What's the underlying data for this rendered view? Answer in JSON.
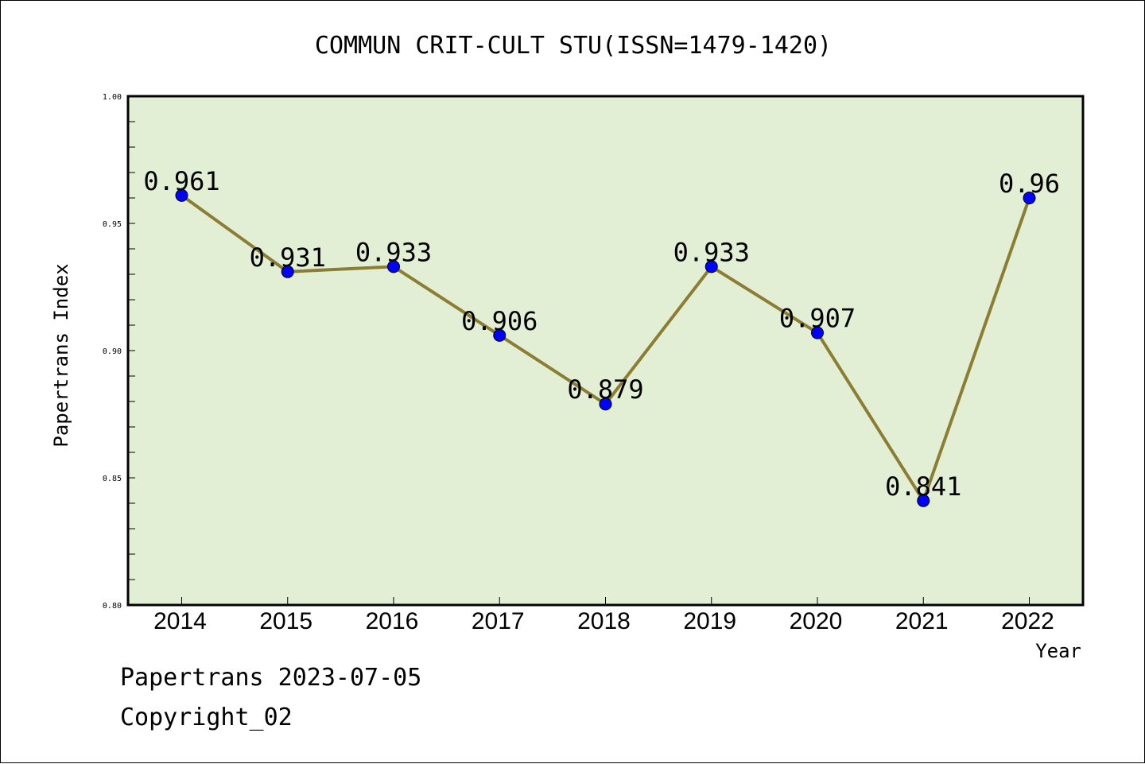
{
  "chart_data": {
    "type": "line",
    "title": "COMMUN CRIT-CULT STU(ISSN=1479-1420)",
    "xlabel": "Year",
    "ylabel": "Papertrans Index",
    "categories": [
      "2014",
      "2015",
      "2016",
      "2017",
      "2018",
      "2019",
      "2020",
      "2021",
      "2022"
    ],
    "values": [
      0.961,
      0.931,
      0.933,
      0.906,
      0.879,
      0.933,
      0.907,
      0.841,
      0.96
    ],
    "data_labels": [
      "0.961",
      "0.931",
      "0.933",
      "0.906",
      "0.879",
      "0.933",
      "0.907",
      "0.841",
      "0.96"
    ],
    "ylim": [
      0.8,
      1.0
    ],
    "yticks": [
      0.8,
      0.85,
      0.9,
      0.95,
      1.0
    ],
    "ytick_labels": [
      "0.80",
      "0.85",
      "0.90",
      "0.95",
      "1.00"
    ],
    "grid": false,
    "legend": "none",
    "colors": {
      "plot_background": "#e2efd5",
      "line": "#8b7d32",
      "marker": "#0000ff",
      "axis": "#000000"
    }
  },
  "footer": {
    "stamp": "Papertrans 2023-07-05",
    "copyright": "Copyright_02"
  }
}
